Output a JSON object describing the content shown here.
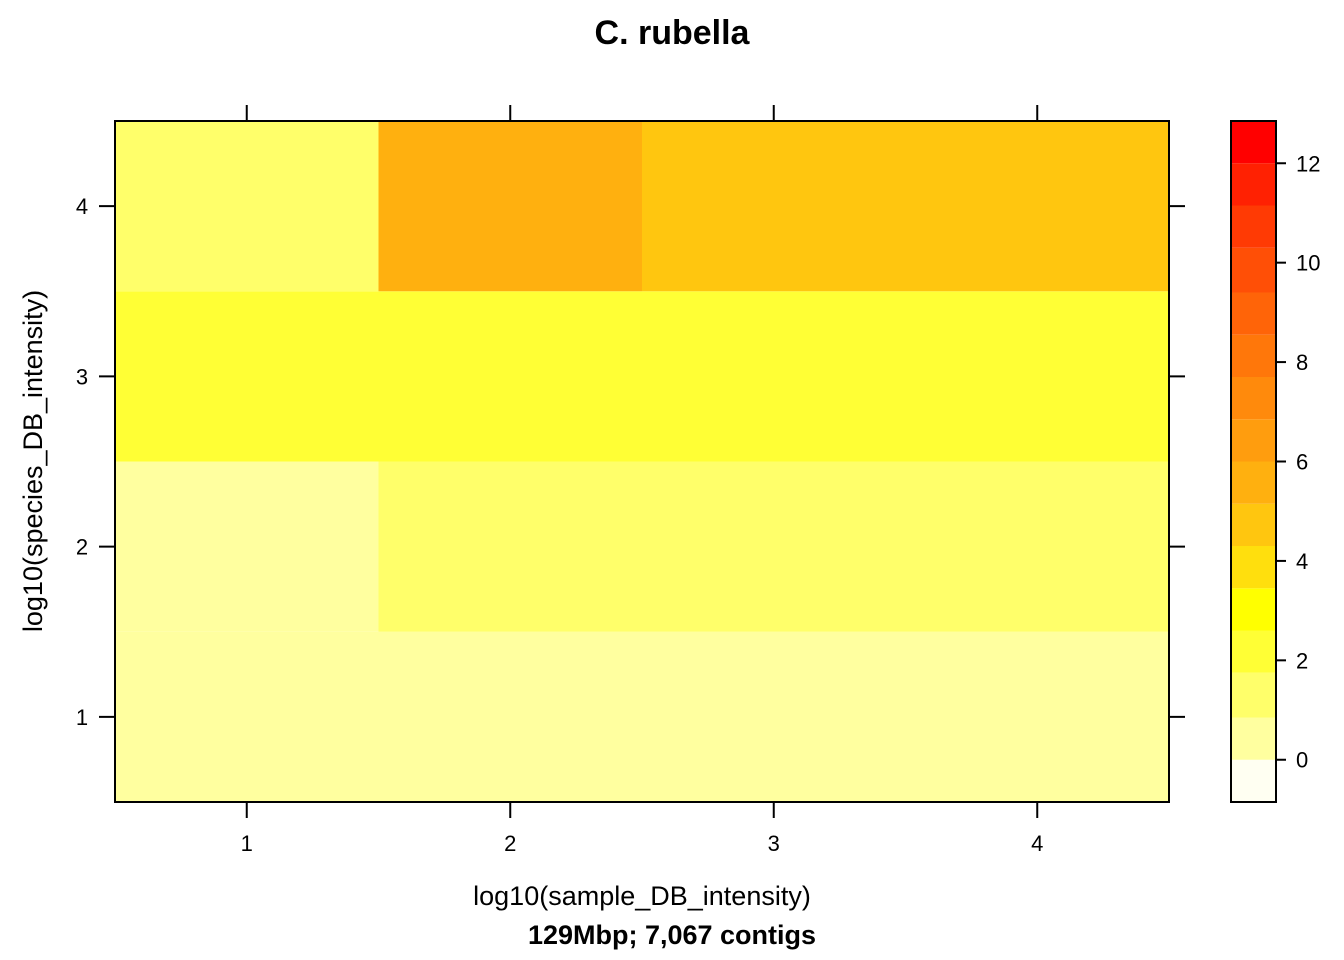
{
  "chart_data": {
    "type": "heatmap",
    "title": "C. rubella",
    "xlabel": "log10(sample_DB_intensity)",
    "ylabel": "log10(species_DB_intensity)",
    "subtitle": "129Mbp; 7,067 contigs",
    "x": [
      1,
      2,
      3,
      4
    ],
    "y": [
      1,
      2,
      3,
      4
    ],
    "xlim": [
      0.5,
      4.5
    ],
    "ylim": [
      0.5,
      4.5
    ],
    "x_ticks": [
      "1",
      "2",
      "3",
      "4"
    ],
    "y_ticks": [
      "1",
      "2",
      "3",
      "4"
    ],
    "cells": [
      {
        "x": 1,
        "y": 1,
        "value": 0
      },
      {
        "x": 2,
        "y": 1,
        "value": 0
      },
      {
        "x": 3,
        "y": 1,
        "value": 0.5
      },
      {
        "x": 4,
        "y": 1,
        "value": 0.5
      },
      {
        "x": 1,
        "y": 2,
        "value": 0.5
      },
      {
        "x": 2,
        "y": 2,
        "value": 1.5
      },
      {
        "x": 3,
        "y": 2,
        "value": 1.5
      },
      {
        "x": 4,
        "y": 2,
        "value": 1.5
      },
      {
        "x": 1,
        "y": 3,
        "value": 2.5
      },
      {
        "x": 2,
        "y": 3,
        "value": 2.5
      },
      {
        "x": 3,
        "y": 3,
        "value": 2.5
      },
      {
        "x": 4,
        "y": 3,
        "value": 2.5
      },
      {
        "x": 1,
        "y": 4,
        "value": 1.5
      },
      {
        "x": 2,
        "y": 4,
        "value": 5.5
      },
      {
        "x": 3,
        "y": 4,
        "value": 4.5
      },
      {
        "x": 4,
        "y": 4,
        "value": 4.5
      }
    ],
    "colorbar": {
      "range": [
        -0.85,
        12.85
      ],
      "breaks": [
        -0.85,
        0.0,
        0.85,
        1.75,
        2.6,
        3.45,
        4.3,
        5.15,
        6.0,
        6.85,
        7.7,
        8.55,
        9.4,
        10.3,
        11.15,
        12.0,
        12.85
      ],
      "colors": [
        "#FFFFF2",
        "#FFFF9F",
        "#FFFF6A",
        "#FFFF35",
        "#FFFF00",
        "#FFDF0D",
        "#FFC60F",
        "#FFB00F",
        "#FF9D0E",
        "#FF8A0C",
        "#FF770A",
        "#FF6408",
        "#FF4F06",
        "#FF3A04",
        "#FF2102",
        "#FF0000"
      ],
      "ticks": [
        "0",
        "2",
        "4",
        "6",
        "8",
        "10",
        "12"
      ]
    },
    "grid": false,
    "legend": "colorbar-right"
  }
}
